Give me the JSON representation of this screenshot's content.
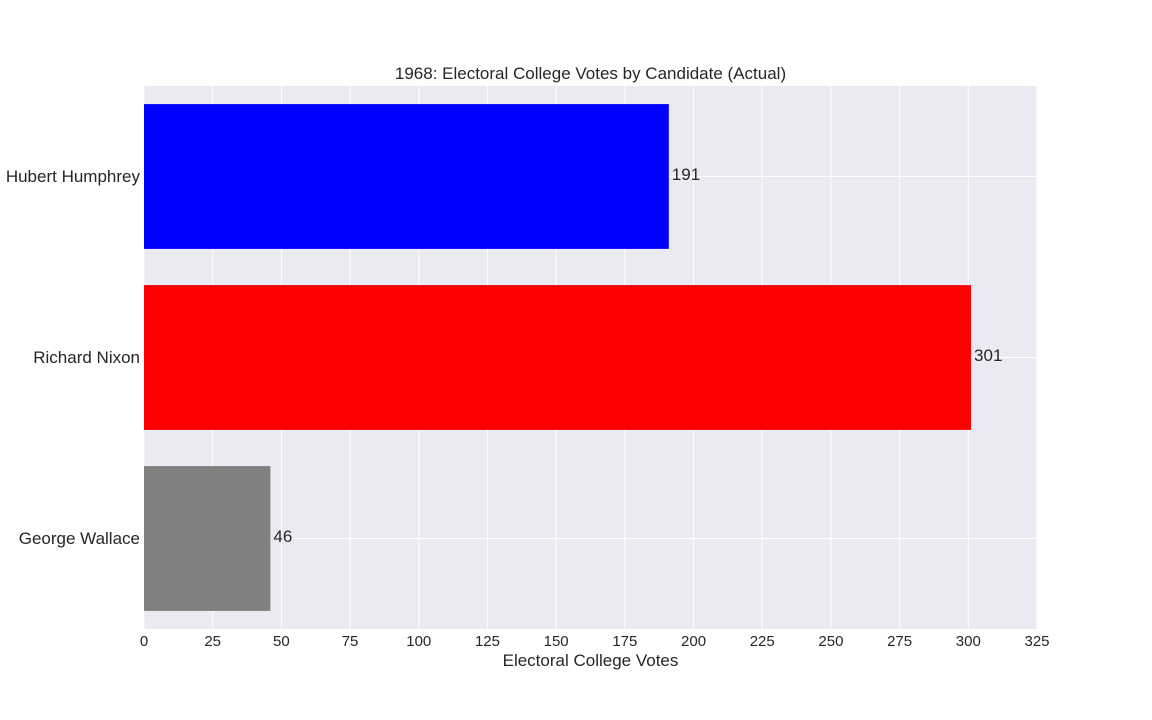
{
  "chart_data": {
    "type": "bar",
    "orientation": "horizontal",
    "title": "1968: Electoral College Votes by Candidate (Actual)",
    "xlabel": "Electoral College Votes",
    "ylabel": "",
    "categories": [
      "Hubert Humphrey",
      "Richard Nixon",
      "George Wallace"
    ],
    "values": [
      191,
      301,
      46
    ],
    "bar_colors": [
      "#0000ff",
      "#ff0000",
      "#808080"
    ],
    "data_labels": [
      "191",
      "301",
      "46"
    ],
    "xlim": [
      0,
      325
    ],
    "xticks": [
      0,
      25,
      50,
      75,
      100,
      125,
      150,
      175,
      200,
      225,
      250,
      275,
      300,
      325
    ],
    "xtick_labels": [
      "0",
      "25",
      "50",
      "75",
      "100",
      "125",
      "150",
      "175",
      "200",
      "225",
      "250",
      "275",
      "300",
      "325"
    ],
    "grid": true,
    "background_color": "#eaeaf2",
    "grid_color": "#ffffff",
    "legend": "none"
  }
}
